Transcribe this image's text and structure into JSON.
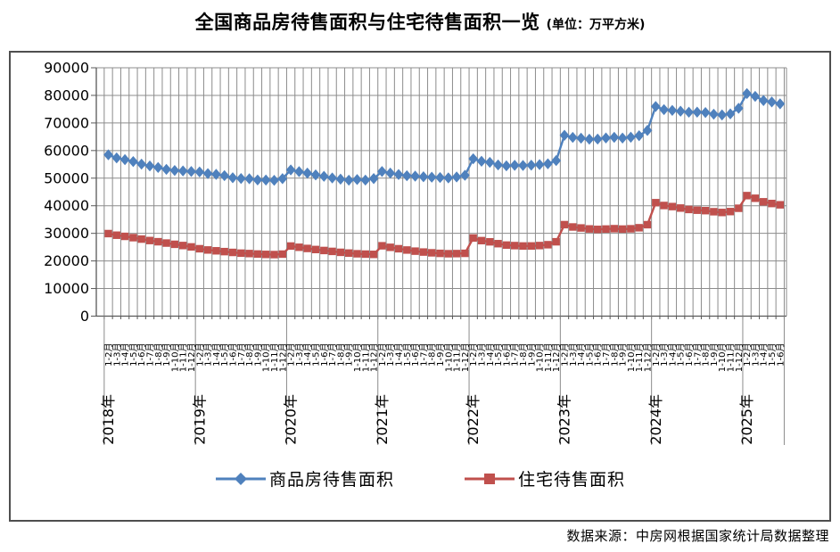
{
  "title": {
    "main": "全国商品房待售面积与住宅待售面积一览",
    "unit": "(单位：万平方米)"
  },
  "source_note": "数据来源：中房网根据国家统计局数据整理",
  "legend": [
    {
      "label": "商品房待售面积",
      "color": "#4F81BD",
      "marker": "diamond"
    },
    {
      "label": "住宅待售面积",
      "color": "#C0504D",
      "marker": "square"
    }
  ],
  "colors": {
    "blue": "#4F81BD",
    "red": "#C0504D",
    "grid": "#8C8C8C",
    "axis": "#595959",
    "frame": "#4F4F4F"
  },
  "chart_data": {
    "type": "line",
    "title": "全国商品房待售面积与住宅待售面积一览",
    "unit": "万平方米",
    "grid": true,
    "legend_position": "bottom",
    "y_min": 0,
    "y_max": 90000,
    "y_step": 10000,
    "y_ticks": [
      0,
      10000,
      20000,
      30000,
      40000,
      50000,
      60000,
      70000,
      80000,
      90000
    ],
    "x_labels": [
      "1-2月",
      "1-3月",
      "1-4月",
      "1-5月",
      "1-6月",
      "1-7月",
      "1-8月",
      "1-9月",
      "1-10月",
      "1-11月",
      "1-12月",
      "1-2月",
      "1-3月",
      "1-4月",
      "1-5月",
      "1-6月",
      "1-7月",
      "1-8月",
      "1-9月",
      "1-10月",
      "1-11月",
      "1-12月",
      "1-2月",
      "1-3月",
      "1-4月",
      "1-5月",
      "1-6月",
      "1-7月",
      "1-8月",
      "1-9月",
      "1-10月",
      "1-11月",
      "1-12月",
      "1-2月",
      "1-3月",
      "1-4月",
      "1-5月",
      "1-6月",
      "1-7月",
      "1-8月",
      "1-9月",
      "1-10月",
      "1-11月",
      "1-12月",
      "1-2月",
      "1-3月",
      "1-4月",
      "1-5月",
      "1-6月",
      "1-7月",
      "1-8月",
      "1-9月",
      "1-10月",
      "1-11月",
      "1-12月",
      "1-2月",
      "1-3月",
      "1-4月",
      "1-5月",
      "1-6月",
      "1-7月",
      "1-8月",
      "1-9月",
      "1-10月",
      "1-11月",
      "1-12月",
      "1-2月",
      "1-3月",
      "1-4月",
      "1-5月",
      "1-6月",
      "1-7月",
      "1-8月",
      "1-9月",
      "1-10月",
      "1-11月",
      "1-12月",
      "1-2月",
      "1-3月",
      "1-4月",
      "1-5月",
      "1-6月"
    ],
    "year_groups": [
      {
        "label": "2018年",
        "start": 0
      },
      {
        "label": "2019年",
        "start": 11
      },
      {
        "label": "2020年",
        "start": 22
      },
      {
        "label": "2021年",
        "start": 33
      },
      {
        "label": "2022年",
        "start": 44
      },
      {
        "label": "2023年",
        "start": 55
      },
      {
        "label": "2024年",
        "start": 66
      },
      {
        "label": "2025年",
        "start": 77
      }
    ],
    "series": [
      {
        "name": "商品房待售面积",
        "color": "#4F81BD",
        "marker": "diamond",
        "values": [
          58468,
          57329,
          56716,
          56010,
          55083,
          54428,
          53873,
          53191,
          52789,
          52627,
          52414,
          52251,
          51646,
          51380,
          50928,
          50162,
          49876,
          49784,
          49346,
          49323,
          49221,
          49821,
          52985,
          52370,
          51825,
          51184,
          50662,
          50081,
          49649,
          49277,
          49492,
          49287,
          49850,
          52425,
          51835,
          51312,
          50887,
          50738,
          50507,
          50344,
          50221,
          50092,
          50430,
          51023,
          57026,
          56113,
          55735,
          54784,
          54469,
          54655,
          54605,
          54703,
          54913,
          55203,
          56366,
          65528,
          64770,
          64487,
          64120,
          64159,
          64564,
          64795,
          64537,
          64835,
          65385,
          67295,
          75969,
          74833,
          74553,
          74256,
          73894,
          73926,
          73784,
          73177,
          72909,
          73286,
          75327,
          80664,
          79649,
          78127,
          77613,
          76948
        ]
      },
      {
        "name": "住宅待售面积",
        "color": "#C0504D",
        "marker": "square",
        "values": [
          29912,
          29329,
          28904,
          28437,
          27915,
          27396,
          26963,
          26480,
          26031,
          25589,
          25091,
          24424,
          23977,
          23674,
          23383,
          23093,
          22825,
          22679,
          22511,
          22373,
          22302,
          22473,
          25403,
          24958,
          24527,
          24143,
          23787,
          23462,
          23126,
          22852,
          22598,
          22472,
          22379,
          25492,
          24936,
          24423,
          23957,
          23549,
          23224,
          22946,
          22748,
          22614,
          22661,
          22761,
          28313,
          27366,
          26927,
          26262,
          25746,
          25559,
          25418,
          25434,
          25577,
          25882,
          26947,
          33148,
          32314,
          31951,
          31601,
          31435,
          31563,
          31693,
          31548,
          31657,
          32029,
          33139,
          41114,
          40094,
          39701,
          39166,
          38646,
          38383,
          38228,
          37835,
          37563,
          37889,
          39088,
          43674,
          42718,
          41434,
          40813,
          40341
        ]
      }
    ]
  }
}
